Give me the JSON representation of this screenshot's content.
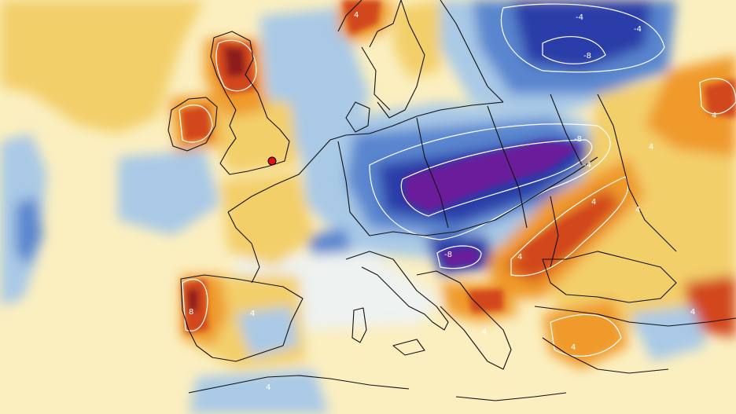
{
  "map": {
    "palette": {
      "deep_purple": "#6a1a9a",
      "dark_blue": "#2a3ea8",
      "blue": "#5a86cf",
      "light_blue": "#a9c9e6",
      "pale": "#eef2f0",
      "cream": "#fbefc0",
      "yellow": "#f3cf6a",
      "orange": "#ef9a2a",
      "red": "#d2461c",
      "dark_red": "#8d1c1c",
      "contour": "#ffffff",
      "coastline": "#111111",
      "marker": "#e01010"
    },
    "contour_labels": [
      {
        "id": "l1",
        "text": "-4"
      },
      {
        "id": "l2",
        "text": "-4"
      },
      {
        "id": "l3",
        "text": "-8"
      },
      {
        "id": "l4",
        "text": "-8"
      },
      {
        "id": "l5",
        "text": "-4"
      },
      {
        "id": "l6",
        "text": "-8"
      },
      {
        "id": "l7",
        "text": "4"
      },
      {
        "id": "l8",
        "text": "4"
      },
      {
        "id": "l9",
        "text": "4"
      },
      {
        "id": "l10",
        "text": "4"
      },
      {
        "id": "l11",
        "text": "4"
      },
      {
        "id": "l12",
        "text": "8"
      },
      {
        "id": "l13",
        "text": "4"
      },
      {
        "id": "l14",
        "text": "4"
      },
      {
        "id": "l15",
        "text": "4"
      },
      {
        "id": "l16",
        "text": "4"
      },
      {
        "id": "l17",
        "text": "4"
      },
      {
        "id": "l18",
        "text": "4"
      }
    ]
  }
}
